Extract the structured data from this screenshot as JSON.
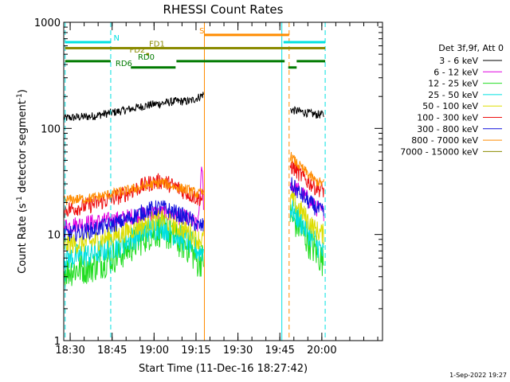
{
  "chart_data": {
    "type": "line",
    "title": "RHESSI Count Rates",
    "xlabel": "Start Time (11-Dec-16 18:27:42)",
    "ylabel_prefix": "Count Rate (s",
    "ylabel_sup1": "-1",
    "ylabel_middle": " detector segment",
    "ylabel_sup2": "-1",
    "ylabel_suffix": ")",
    "y_scale": "log",
    "ylim": [
      1,
      1000
    ],
    "y_ticks": [
      {
        "value": 1,
        "label": "1"
      },
      {
        "value": 10,
        "label": "10"
      },
      {
        "value": 100,
        "label": "100"
      },
      {
        "value": 1000,
        "label": "1000"
      }
    ],
    "x_unit": "minutes after 18:27:42",
    "xlim": [
      0,
      114
    ],
    "x_ticks": [
      {
        "value": 2.3,
        "label": "18:30"
      },
      {
        "value": 17.3,
        "label": "18:45"
      },
      {
        "value": 32.3,
        "label": "19:00"
      },
      {
        "value": 47.3,
        "label": "19:15"
      },
      {
        "value": 62.3,
        "label": "19:30"
      },
      {
        "value": 77.3,
        "label": "19:45"
      },
      {
        "value": 92.3,
        "label": "20:00"
      }
    ],
    "legend": {
      "header": "Det 3f,9f, Att 0",
      "position": "right-outside",
      "entries": [
        {
          "label": "3 - 6 keV",
          "color": "#000000"
        },
        {
          "label": "6 - 12 keV",
          "color": "#e000e0"
        },
        {
          "label": "12 - 25 keV",
          "color": "#22dd22"
        },
        {
          "label": "25 - 50 keV",
          "color": "#00e0e0"
        },
        {
          "label": "50 - 100 keV",
          "color": "#dddd00"
        },
        {
          "label": "100 - 300 keV",
          "color": "#ee1111"
        },
        {
          "label": "300 - 800 keV",
          "color": "#1111dd"
        },
        {
          "label": "800 - 7000 keV",
          "color": "#ff8c00"
        },
        {
          "label": "7000 - 15000 keV",
          "color": "#8b8b00"
        }
      ]
    },
    "series": [
      {
        "name": "3 - 6 keV",
        "color": "#000000",
        "noise": 0.04,
        "segments": [
          {
            "x": [
              0,
              10,
              20,
              30,
              40,
              45,
              48,
              50
            ],
            "y": [
              125,
              130,
              145,
              165,
              180,
              180,
              195,
              210
            ]
          },
          {
            "x": [
              81,
              84,
              87,
              90,
              93
            ],
            "y": [
              150,
              145,
              140,
              135,
              135
            ]
          }
        ]
      },
      {
        "name": "6 - 12 keV",
        "color": "#e000e0",
        "noise": 0.08,
        "segments": [
          {
            "x": [
              0,
              10,
              20,
              30,
              35,
              40,
              45,
              48,
              49.5,
              50
            ],
            "y": [
              12,
              13,
              14,
              16,
              16,
              15,
              14,
              12,
              45,
              20
            ]
          },
          {
            "x": [
              81,
              84,
              87,
              90,
              93
            ],
            "y": [
              30,
              26,
              22,
              18,
              16
            ]
          }
        ]
      },
      {
        "name": "12 - 25 keV",
        "color": "#22dd22",
        "noise": 0.16,
        "segments": [
          {
            "x": [
              0,
              10,
              20,
              30,
              35,
              40,
              45,
              48,
              50
            ],
            "y": [
              4.5,
              5,
              6.5,
              10,
              11,
              9,
              7.5,
              5.5,
              6
            ]
          },
          {
            "x": [
              81,
              84,
              87,
              90,
              93
            ],
            "y": [
              15,
              12,
              9,
              7,
              5.5
            ]
          }
        ]
      },
      {
        "name": "25 - 50 keV",
        "color": "#00e0e0",
        "noise": 0.12,
        "segments": [
          {
            "x": [
              0,
              10,
              20,
              30,
              35,
              40,
              45,
              48,
              50
            ],
            "y": [
              6,
              6.5,
              8,
              11,
              12,
              10,
              8.5,
              7,
              7
            ]
          },
          {
            "x": [
              81,
              84,
              87,
              90,
              93
            ],
            "y": [
              18,
              14,
              11,
              8.5,
              6.5
            ]
          }
        ]
      },
      {
        "name": "50 - 100 keV",
        "color": "#dddd00",
        "noise": 0.1,
        "segments": [
          {
            "x": [
              0,
              10,
              20,
              30,
              35,
              40,
              45,
              48,
              50
            ],
            "y": [
              8,
              8.5,
              10,
              13,
              14,
              12,
              10.5,
              9,
              9
            ]
          },
          {
            "x": [
              81,
              84,
              87,
              90,
              93
            ],
            "y": [
              22,
              18,
              14,
              11,
              10
            ]
          }
        ]
      },
      {
        "name": "100 - 300 keV",
        "color": "#ee1111",
        "noise": 0.08,
        "segments": [
          {
            "x": [
              0,
              10,
              20,
              30,
              35,
              40,
              45,
              48,
              50
            ],
            "y": [
              17,
              19,
              23,
              30,
              32,
              28,
              24,
              22,
              22
            ]
          },
          {
            "x": [
              81,
              84,
              87,
              90,
              93
            ],
            "y": [
              45,
              38,
              32,
              28,
              26
            ]
          }
        ]
      },
      {
        "name": "300 - 800 keV",
        "color": "#1111dd",
        "noise": 0.08,
        "segments": [
          {
            "x": [
              0,
              10,
              20,
              30,
              35,
              40,
              45,
              48,
              50
            ],
            "y": [
              10,
              11,
              13,
              17,
              18,
              16,
              14,
              12,
              12
            ]
          },
          {
            "x": [
              81,
              84,
              87,
              90,
              93
            ],
            "y": [
              30,
              25,
              21,
              18,
              16
            ]
          }
        ]
      },
      {
        "name": "800 - 7000 keV",
        "color": "#ff8c00",
        "noise": 0.05,
        "segments": [
          {
            "x": [
              0,
              10,
              20,
              30,
              35,
              40,
              45,
              48,
              50
            ],
            "y": [
              21,
              22,
              25,
              29,
              31,
              28,
              26,
              24,
              25
            ]
          },
          {
            "x": [
              81,
              84,
              87,
              90,
              93
            ],
            "y": [
              55,
              45,
              38,
              32,
              30
            ]
          }
        ]
      },
      {
        "name": "7000 - 15000 keV",
        "color": "#8b8b00",
        "noise": 0.05,
        "segments": []
      }
    ],
    "vertical_lines": [
      {
        "x": 0.5,
        "color": "#00e0e0",
        "style": "dashed"
      },
      {
        "x": 16.8,
        "color": "#00e0e0",
        "style": "dashed"
      },
      {
        "x": 50.3,
        "color": "#ff8c00",
        "style": "solid"
      },
      {
        "x": 78.0,
        "color": "#00e0e0",
        "style": "solid"
      },
      {
        "x": 80.6,
        "color": "#ff8c00",
        "style": "dashed"
      },
      {
        "x": 93.5,
        "color": "#00e0e0",
        "style": "dashed"
      }
    ],
    "flag_bars": [
      {
        "label": "N",
        "label_x": 17.8,
        "color": "#00e0e0",
        "level": 650,
        "ranges": [
          [
            0.5,
            16.8
          ],
          [
            78.6,
            93.5
          ]
        ]
      },
      {
        "label": "S",
        "label_x": 48.5,
        "color": "#ff8c00",
        "level": 760,
        "ranges": [
          [
            50.3,
            80.6
          ]
        ]
      },
      {
        "label": "FD1",
        "label_x": 30.5,
        "color": "#8b8b00",
        "level": 570,
        "ranges": [
          [
            0.5,
            93.5
          ]
        ]
      },
      {
        "label": "FD2",
        "label_x": 23.5,
        "color": "#8b8b00",
        "level": 500,
        "ranges": [
          [
            29.5,
            30.5
          ]
        ]
      },
      {
        "label": "RD0",
        "label_x": 26.5,
        "color": "#007a00",
        "level": 430,
        "ranges": [
          [
            0.5,
            16.8
          ],
          [
            40.3,
            79.0
          ],
          [
            83.3,
            93.5
          ]
        ]
      },
      {
        "label": "RD6",
        "label_x": 18.5,
        "color": "#007a00",
        "level": 375,
        "ranges": [
          [
            24.0,
            40.0
          ],
          [
            80.3,
            83.3
          ]
        ]
      }
    ],
    "grid": false
  },
  "timestamp": "1-Sep-2022 19:27"
}
